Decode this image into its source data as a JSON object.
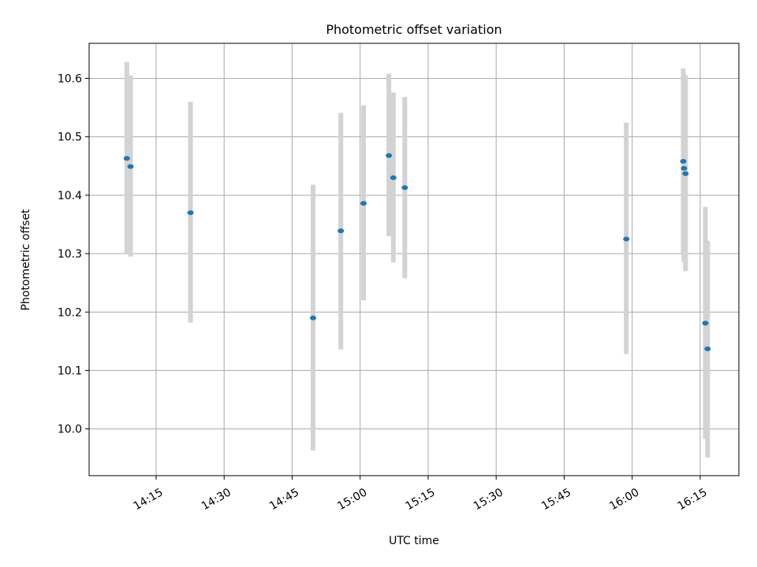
{
  "chart_data": {
    "type": "scatter",
    "title": "Photometric offset variation",
    "xlabel": "UTC time",
    "ylabel": "Photometric offset",
    "grid": true,
    "x_ticks": [
      "14:15",
      "14:30",
      "14:45",
      "15:00",
      "15:15",
      "15:30",
      "15:45",
      "16:00",
      "16:15"
    ],
    "y_ticks": [
      10.0,
      10.1,
      10.2,
      10.3,
      10.4,
      10.5,
      10.6
    ],
    "xlim": [
      "14:00:13",
      "16:23:32"
    ],
    "ylim": [
      9.92,
      10.66
    ],
    "colors": {
      "point": "#1f77b4",
      "errorbar": "#d3d3d3",
      "grid": "#b0b0b0"
    },
    "points": [
      {
        "x": "14:08:32",
        "y": 10.463,
        "err_low": 10.3,
        "err_high": 10.628
      },
      {
        "x": "14:09:21",
        "y": 10.449,
        "err_low": 10.295,
        "err_high": 10.605
      },
      {
        "x": "14:22:35",
        "y": 10.37,
        "err_low": 10.182,
        "err_high": 10.56
      },
      {
        "x": "14:49:37",
        "y": 10.19,
        "err_low": 9.963,
        "err_high": 10.418
      },
      {
        "x": "14:55:44",
        "y": 10.339,
        "err_low": 10.136,
        "err_high": 10.541
      },
      {
        "x": "15:00:45",
        "y": 10.386,
        "err_low": 10.22,
        "err_high": 10.554
      },
      {
        "x": "15:06:20",
        "y": 10.468,
        "err_low": 10.33,
        "err_high": 10.608
      },
      {
        "x": "15:07:19",
        "y": 10.43,
        "err_low": 10.285,
        "err_high": 10.576
      },
      {
        "x": "15:09:51",
        "y": 10.413,
        "err_low": 10.258,
        "err_high": 10.568
      },
      {
        "x": "15:58:42",
        "y": 10.325,
        "err_low": 10.128,
        "err_high": 10.524
      },
      {
        "x": "16:11:16",
        "y": 10.458,
        "err_low": 10.297,
        "err_high": 10.617
      },
      {
        "x": "16:11:26",
        "y": 10.446,
        "err_low": 10.285,
        "err_high": 10.607
      },
      {
        "x": "16:11:46",
        "y": 10.437,
        "err_low": 10.27,
        "err_high": 10.605
      },
      {
        "x": "16:16:08",
        "y": 10.181,
        "err_low": 9.983,
        "err_high": 10.38
      },
      {
        "x": "16:16:38",
        "y": 10.137,
        "err_low": 9.951,
        "err_high": 10.322
      }
    ]
  }
}
